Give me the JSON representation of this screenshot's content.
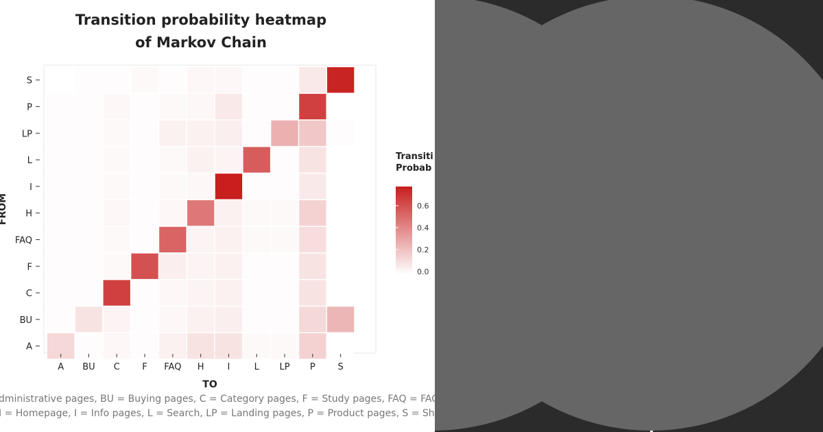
{
  "chart_data": {
    "type": "heatmap",
    "title_lines": [
      "Transition probability heatmap",
      "of Markov Chain"
    ],
    "xlabel": "TO",
    "ylabel": "FROM",
    "x_categories": [
      "A",
      "BU",
      "C",
      "F",
      "FAQ",
      "H",
      "I",
      "L",
      "LP",
      "P",
      "S"
    ],
    "y_categories": [
      "S",
      "P",
      "LP",
      "L",
      "I",
      "H",
      "FAQ",
      "F",
      "C",
      "BU",
      "A"
    ],
    "values": [
      [
        0.0,
        0.01,
        0.01,
        0.02,
        0.01,
        0.03,
        0.03,
        0.01,
        0.01,
        0.08,
        0.78
      ],
      [
        0.01,
        0.01,
        0.03,
        0.01,
        0.02,
        0.03,
        0.08,
        0.01,
        0.01,
        0.68,
        0.0
      ],
      [
        0.01,
        0.01,
        0.02,
        0.01,
        0.05,
        0.05,
        0.06,
        0.01,
        0.28,
        0.2,
        0.01
      ],
      [
        0.01,
        0.01,
        0.02,
        0.01,
        0.02,
        0.05,
        0.04,
        0.58,
        0.01,
        0.1,
        0.0
      ],
      [
        0.01,
        0.01,
        0.02,
        0.01,
        0.02,
        0.03,
        0.82,
        0.01,
        0.01,
        0.08,
        0.0
      ],
      [
        0.01,
        0.01,
        0.03,
        0.01,
        0.03,
        0.48,
        0.05,
        0.02,
        0.02,
        0.16,
        0.0
      ],
      [
        0.01,
        0.01,
        0.02,
        0.01,
        0.55,
        0.04,
        0.05,
        0.02,
        0.02,
        0.12,
        0.0
      ],
      [
        0.01,
        0.01,
        0.02,
        0.62,
        0.06,
        0.04,
        0.05,
        0.01,
        0.01,
        0.1,
        0.0
      ],
      [
        0.01,
        0.01,
        0.68,
        0.01,
        0.03,
        0.04,
        0.05,
        0.01,
        0.01,
        0.1,
        0.0
      ],
      [
        0.01,
        0.1,
        0.04,
        0.01,
        0.03,
        0.05,
        0.06,
        0.01,
        0.01,
        0.14,
        0.26
      ],
      [
        0.14,
        0.01,
        0.03,
        0.01,
        0.05,
        0.1,
        0.1,
        0.02,
        0.02,
        0.16,
        0.0
      ]
    ],
    "value_range": [
      0,
      0.8
    ],
    "color_low": "#ffffff",
    "color_high": "#c81e1e",
    "legend": {
      "title_lines": [
        "Transiti",
        "Probab"
      ],
      "ticks": [
        0.0,
        0.2,
        0.4,
        0.6
      ],
      "tick_labels": [
        "0.0",
        "0.2",
        "0.4",
        "0.6"
      ]
    },
    "caption_lines": [
      "dministrative pages, BU = Buying pages, C = Category pages, F = Study pages, FAQ = FAQ pa",
      "I = Homepage, I = Info pages, L = Search, LP = Landing pages, P = Product pages,  S = Shop"
    ]
  },
  "colors": {
    "dark_background": "#2b2b2b",
    "circle_fill": "#666666",
    "separator": "#ffffff"
  }
}
